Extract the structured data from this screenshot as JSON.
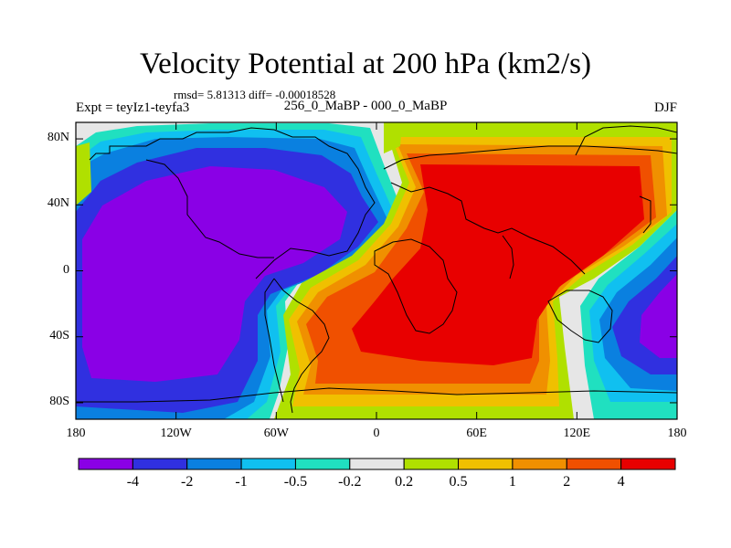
{
  "title": "Velocity Potential at 200 hPa (km2/s)",
  "stats": "rmsd= 5.81313 diff= -0.00018528",
  "experiment": "Expt = teyIz1-teyfa3",
  "period": "256_0_MaBP - 000_0_MaBP",
  "season": "DJF",
  "axes": {
    "y_ticks": [
      {
        "label": "80N",
        "lat": 80
      },
      {
        "label": "40N",
        "lat": 40
      },
      {
        "label": "0",
        "lat": 0
      },
      {
        "label": "40S",
        "lat": -40
      },
      {
        "label": "80S",
        "lat": -80
      }
    ],
    "x_ticks": [
      {
        "label": "180",
        "lon": -180
      },
      {
        "label": "120W",
        "lon": -120
      },
      {
        "label": "60W",
        "lon": -60
      },
      {
        "label": "0",
        "lon": 0
      },
      {
        "label": "60E",
        "lon": 60
      },
      {
        "label": "120E",
        "lon": 120
      },
      {
        "label": "180",
        "lon": 180
      }
    ]
  },
  "colorbar": {
    "colors": [
      "#8a00e6",
      "#3030e0",
      "#0a80e0",
      "#10c0f0",
      "#20e0c0",
      "#e6e6e6",
      "#b0e000",
      "#f0c000",
      "#f09000",
      "#f05000",
      "#e80000"
    ],
    "labels": [
      "-4",
      "-2",
      "-1",
      "-0.5",
      "-0.2",
      "0.2",
      "0.5",
      "1",
      "2",
      "4"
    ]
  },
  "colors": {
    "coastline": "#000000",
    "frame": "#000000"
  }
}
